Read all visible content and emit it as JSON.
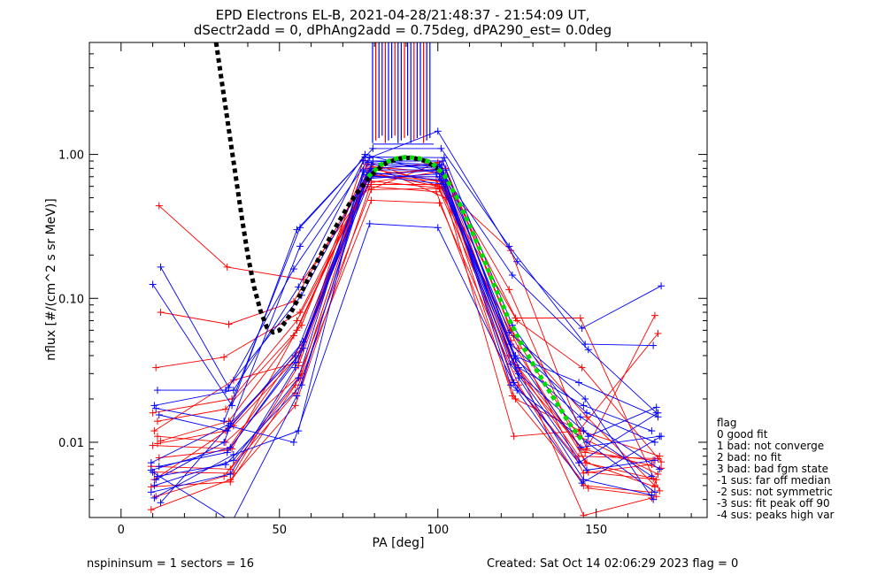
{
  "chart_data": {
    "type": "line",
    "title": [
      "EPD Electrons EL-B, 2021-04-28/21:48:37 - 21:54:09 UT,",
      "dSectr2add = 0, dPhAng2add = 0.75deg, dPA290_est=    0.0deg"
    ],
    "xlabel": "PA [deg]",
    "ylabel": "nflux [#/(cm^2 s sr MeV)]",
    "xlim": [
      -10,
      185
    ],
    "ylim": [
      0.003,
      6
    ],
    "yscale": "log",
    "x_ticks": [
      0,
      50,
      100,
      150
    ],
    "x_tick_labels": [
      "0",
      "50",
      "100",
      "150"
    ],
    "y_ticks": [
      0.01,
      0.1,
      1.0
    ],
    "y_tick_labels": [
      "0.01",
      "0.10",
      "1.00"
    ],
    "colors": {
      "red": "#ff0000",
      "blue": "#0000ff",
      "black_fit": "#000000",
      "green_fit": "#00dd00"
    },
    "pa_centers": [
      11,
      34,
      56,
      78,
      101,
      124,
      146,
      169
    ],
    "red_curves": [
      [
        0.0049,
        0.0053,
        0.025,
        0.57,
        0.58,
        0.045,
        0.0061,
        0.007
      ],
      [
        0.0062,
        0.0061,
        0.034,
        0.62,
        0.62,
        0.051,
        0.0072,
        0.0049
      ],
      [
        0.0098,
        0.012,
        0.045,
        0.7,
        0.7,
        0.036,
        0.008,
        0.0077
      ],
      [
        0.0102,
        0.014,
        0.055,
        0.75,
        0.6,
        0.031,
        0.009,
        0.0066
      ],
      [
        0.016,
        0.02,
        0.07,
        0.72,
        0.65,
        0.04,
        0.0085,
        0.0075
      ],
      [
        0.033,
        0.039,
        0.08,
        0.62,
        0.62,
        0.027,
        0.0062,
        0.0055
      ],
      [
        0.44,
        0.165,
        0.135,
        0.6,
        0.55,
        0.02,
        0.012,
        0.008
      ],
      [
        0.0068,
        0.0065,
        0.022,
        0.48,
        0.46,
        0.025,
        0.005,
        0.0045
      ],
      [
        0.0055,
        0.013,
        0.04,
        0.55,
        0.9,
        0.06,
        0.015,
        0.005
      ],
      [
        0.011,
        0.01,
        0.03,
        0.72,
        0.8,
        0.055,
        0.011,
        0.006
      ],
      [
        0.08,
        0.066,
        0.095,
        0.78,
        0.88,
        0.07,
        0.033,
        0.0073
      ],
      [
        0.0095,
        0.009,
        0.06,
        0.82,
        0.75,
        0.115,
        0.0072,
        0.0056
      ],
      [
        0.0042,
        0.0058,
        0.028,
        0.66,
        0.58,
        0.021,
        0.0048,
        0.0042
      ],
      [
        0.0078,
        0.0088,
        0.05,
        0.8,
        0.66,
        0.073,
        0.073,
        0.0046
      ],
      [
        0.0034,
        0.0055,
        0.018,
        0.64,
        0.76,
        0.033,
        0.0031,
        0.0041
      ],
      [
        0.012,
        0.027,
        0.036,
        0.91,
        0.59,
        0.215,
        0.009,
        0.076
      ],
      [
        0.014,
        0.017,
        0.065,
        0.86,
        0.5,
        0.011,
        0.012,
        0.057
      ]
    ],
    "blue_curves": [
      [
        0.0072,
        0.0135,
        0.04,
        0.85,
        0.8,
        0.033,
        0.018,
        0.012
      ],
      [
        0.018,
        0.023,
        0.12,
        0.9,
        0.9,
        0.048,
        0.016,
        0.01
      ],
      [
        0.023,
        0.023,
        0.105,
        0.72,
        0.78,
        0.04,
        0.026,
        0.015
      ],
      [
        0.165,
        0.024,
        0.16,
        0.95,
        1.45,
        0.18,
        0.062,
        0.122
      ],
      [
        0.125,
        0.018,
        0.3,
        1.1,
        1.1,
        0.23,
        0.048,
        0.047
      ],
      [
        0.0055,
        0.01,
        0.23,
        1.0,
        0.72,
        0.145,
        0.044,
        0.016
      ],
      [
        0.0155,
        0.012,
        0.05,
        0.68,
        0.73,
        0.04,
        0.0092,
        0.011
      ],
      [
        0.0045,
        0.006,
        0.033,
        0.8,
        0.85,
        0.028,
        0.0055,
        0.0043
      ],
      [
        0.0041,
        0.0082,
        0.012,
        0.76,
        0.66,
        0.035,
        0.0064,
        0.0075
      ],
      [
        0.0058,
        0.007,
        0.025,
        0.72,
        0.62,
        0.026,
        0.0072,
        0.016
      ],
      [
        0.0038,
        0.013,
        0.01,
        0.33,
        0.31,
        0.023,
        0.0052,
        0.011
      ],
      [
        0.0062,
        0.0028,
        0.021,
        0.9,
        0.84,
        0.058,
        0.02,
        0.004
      ],
      [
        0.0172,
        0.014,
        0.31,
        0.96,
        0.95,
        0.065,
        0.011,
        0.0175
      ],
      [
        0.0068,
        0.0085,
        0.045,
        0.88,
        0.82,
        0.038,
        0.015,
        0.0065
      ],
      [
        0.0064,
        0.0092,
        0.036,
        0.7,
        0.7,
        0.03,
        0.012,
        0.0058
      ],
      [
        0.005,
        0.0075,
        0.028,
        0.78,
        0.78,
        0.025,
        0.01,
        0.0045
      ]
    ],
    "black_fit_points": [
      [
        30,
        6
      ],
      [
        32,
        3
      ],
      [
        34,
        1.5
      ],
      [
        36,
        0.75
      ],
      [
        38,
        0.38
      ],
      [
        40,
        0.2
      ],
      [
        42,
        0.12
      ],
      [
        44,
        0.082
      ],
      [
        46,
        0.063
      ],
      [
        48,
        0.058
      ],
      [
        50,
        0.06
      ],
      [
        53,
        0.075
      ],
      [
        56,
        0.1
      ],
      [
        60,
        0.15
      ],
      [
        64,
        0.22
      ],
      [
        68,
        0.32
      ],
      [
        72,
        0.45
      ],
      [
        76,
        0.6
      ],
      [
        80,
        0.76
      ],
      [
        84,
        0.88
      ],
      [
        88,
        0.94
      ],
      [
        92,
        0.95
      ],
      [
        96,
        0.9
      ],
      [
        100,
        0.8
      ]
    ],
    "green_fit_points": [
      [
        78,
        0.7
      ],
      [
        82,
        0.85
      ],
      [
        86,
        0.93
      ],
      [
        90,
        0.96
      ],
      [
        94,
        0.94
      ],
      [
        98,
        0.88
      ],
      [
        102,
        0.72
      ],
      [
        106,
        0.5
      ],
      [
        110,
        0.32
      ],
      [
        114,
        0.2
      ],
      [
        118,
        0.12
      ],
      [
        122,
        0.075
      ],
      [
        126,
        0.05
      ],
      [
        130,
        0.035
      ],
      [
        134,
        0.025
      ],
      [
        138,
        0.018
      ],
      [
        142,
        0.013
      ],
      [
        146,
        0.01
      ]
    ],
    "legend": [
      "flag",
      " 0 good fit",
      " 1 bad: not converge",
      " 2 bad: no fit",
      " 3 bad: bad fgm state",
      "-1 sus: far off median",
      "-2 sus: not symmetric",
      "-3 sus: fit peak off 90",
      "-4 sus: peaks high var"
    ],
    "legend_position": "right-outside",
    "footer_left": "nspininsum =  1  sectors = 16",
    "footer_right": "Created: Sat Oct 14 02:06:29 2023   flag = 0"
  }
}
